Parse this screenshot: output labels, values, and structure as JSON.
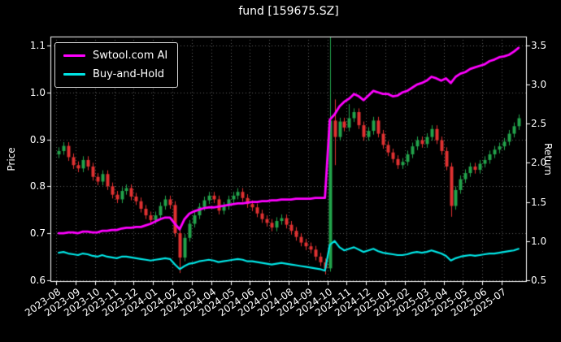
{
  "title": "fund [159675.SZ]",
  "chart_data": {
    "type": "candlestick+line",
    "title": "fund [159675.SZ]",
    "ylabel_left": "Price",
    "ylabel_right": "Return",
    "legend_position": "upper-left",
    "grid": "dotted",
    "x_tick_labels": [
      "2023-08",
      "2023-09",
      "2023-10",
      "2023-11",
      "2023-12",
      "2024-01",
      "2024-02",
      "2024-03",
      "2024-04",
      "2024-05",
      "2024-06",
      "2024-07",
      "2024-08",
      "2024-09",
      "2024-10",
      "2024-11",
      "2024-12",
      "2025-01",
      "2025-02",
      "2025-03",
      "2025-04",
      "2025-05",
      "2025-06",
      "2025-07"
    ],
    "price_axis": {
      "min": 0.6,
      "max": 1.1,
      "ticks": [
        0.6,
        0.7,
        0.8,
        0.9,
        1.0,
        1.1
      ]
    },
    "return_axis": {
      "min": 0.5,
      "max": 3.5,
      "ticks": [
        0.5,
        1.0,
        1.5,
        2.0,
        2.5,
        3.0,
        3.5
      ]
    },
    "points_per_month": 4,
    "candles": {
      "axis": "price",
      "first_open": 0.868,
      "default_wick": 0.008,
      "close": [
        0.875,
        0.886,
        0.862,
        0.845,
        0.838,
        0.856,
        0.842,
        0.82,
        0.81,
        0.826,
        0.8,
        0.782,
        0.772,
        0.79,
        0.796,
        0.778,
        0.768,
        0.752,
        0.738,
        0.728,
        0.738,
        0.758,
        0.772,
        0.76,
        0.7,
        0.648,
        0.69,
        0.72,
        0.738,
        0.756,
        0.77,
        0.78,
        0.772,
        0.748,
        0.758,
        0.772,
        0.78,
        0.788,
        0.775,
        0.762,
        0.755,
        0.742,
        0.73,
        0.722,
        0.712,
        0.726,
        0.732,
        0.718,
        0.705,
        0.692,
        0.68,
        0.672,
        0.665,
        0.65,
        0.638,
        0.625,
        0.94,
        0.905,
        0.938,
        0.925,
        0.945,
        0.958,
        0.93,
        0.905,
        0.918,
        0.94,
        0.912,
        0.888,
        0.872,
        0.858,
        0.845,
        0.852,
        0.868,
        0.885,
        0.898,
        0.89,
        0.905,
        0.922,
        0.898,
        0.875,
        0.842,
        0.758,
        0.792,
        0.815,
        0.828,
        0.842,
        0.835,
        0.848,
        0.856,
        0.868,
        0.878,
        0.885,
        0.895,
        0.912,
        0.928,
        0.945
      ],
      "overrides": {
        "25": {
          "l": 0.615
        },
        "55": {
          "l": 0.612
        },
        "56": {
          "h": 1.118,
          "l": 0.618
        },
        "57": {
          "h": 0.985,
          "l": 0.845
        },
        "60": {
          "h": 0.975
        },
        "81": {
          "l": 0.735
        }
      }
    },
    "series": [
      {
        "name": "Swtool.com AI",
        "axis": "return",
        "color": "#ff00ff",
        "width": 2.8,
        "values": [
          1.1,
          1.1,
          1.11,
          1.11,
          1.1,
          1.12,
          1.12,
          1.11,
          1.11,
          1.13,
          1.13,
          1.14,
          1.14,
          1.16,
          1.17,
          1.17,
          1.18,
          1.18,
          1.2,
          1.22,
          1.25,
          1.28,
          1.3,
          1.3,
          1.22,
          1.15,
          1.28,
          1.35,
          1.38,
          1.4,
          1.42,
          1.43,
          1.43,
          1.44,
          1.45,
          1.46,
          1.47,
          1.48,
          1.48,
          1.49,
          1.5,
          1.5,
          1.51,
          1.51,
          1.52,
          1.52,
          1.53,
          1.53,
          1.53,
          1.54,
          1.54,
          1.54,
          1.54,
          1.55,
          1.55,
          1.55,
          2.55,
          2.62,
          2.72,
          2.78,
          2.82,
          2.88,
          2.85,
          2.8,
          2.86,
          2.92,
          2.9,
          2.88,
          2.88,
          2.85,
          2.86,
          2.9,
          2.92,
          2.96,
          3.0,
          3.02,
          3.05,
          3.1,
          3.08,
          3.05,
          3.08,
          3.02,
          3.1,
          3.14,
          3.16,
          3.2,
          3.22,
          3.24,
          3.26,
          3.3,
          3.32,
          3.35,
          3.36,
          3.38,
          3.42,
          3.47
        ]
      },
      {
        "name": "Buy-and-Hold",
        "axis": "return",
        "color": "#00e5e5",
        "width": 2.2,
        "values": [
          0.85,
          0.86,
          0.84,
          0.83,
          0.82,
          0.84,
          0.83,
          0.81,
          0.8,
          0.82,
          0.8,
          0.79,
          0.78,
          0.8,
          0.8,
          0.79,
          0.78,
          0.77,
          0.76,
          0.75,
          0.76,
          0.77,
          0.78,
          0.77,
          0.7,
          0.64,
          0.68,
          0.71,
          0.72,
          0.74,
          0.75,
          0.76,
          0.75,
          0.73,
          0.74,
          0.75,
          0.76,
          0.77,
          0.76,
          0.74,
          0.74,
          0.73,
          0.72,
          0.71,
          0.7,
          0.71,
          0.72,
          0.71,
          0.7,
          0.69,
          0.68,
          0.67,
          0.66,
          0.65,
          0.64,
          0.62,
          0.95,
          1.0,
          0.92,
          0.88,
          0.9,
          0.92,
          0.89,
          0.86,
          0.88,
          0.9,
          0.87,
          0.85,
          0.84,
          0.83,
          0.82,
          0.82,
          0.83,
          0.85,
          0.86,
          0.85,
          0.86,
          0.88,
          0.86,
          0.84,
          0.81,
          0.75,
          0.78,
          0.8,
          0.81,
          0.82,
          0.81,
          0.82,
          0.83,
          0.84,
          0.84,
          0.85,
          0.86,
          0.87,
          0.88,
          0.9
        ]
      }
    ],
    "colors": {
      "bg": "#000000",
      "text": "#ffffff",
      "spine": "#ffffff",
      "grid": "#5f5f5f",
      "up": "#22a24b",
      "down": "#e03131"
    }
  }
}
